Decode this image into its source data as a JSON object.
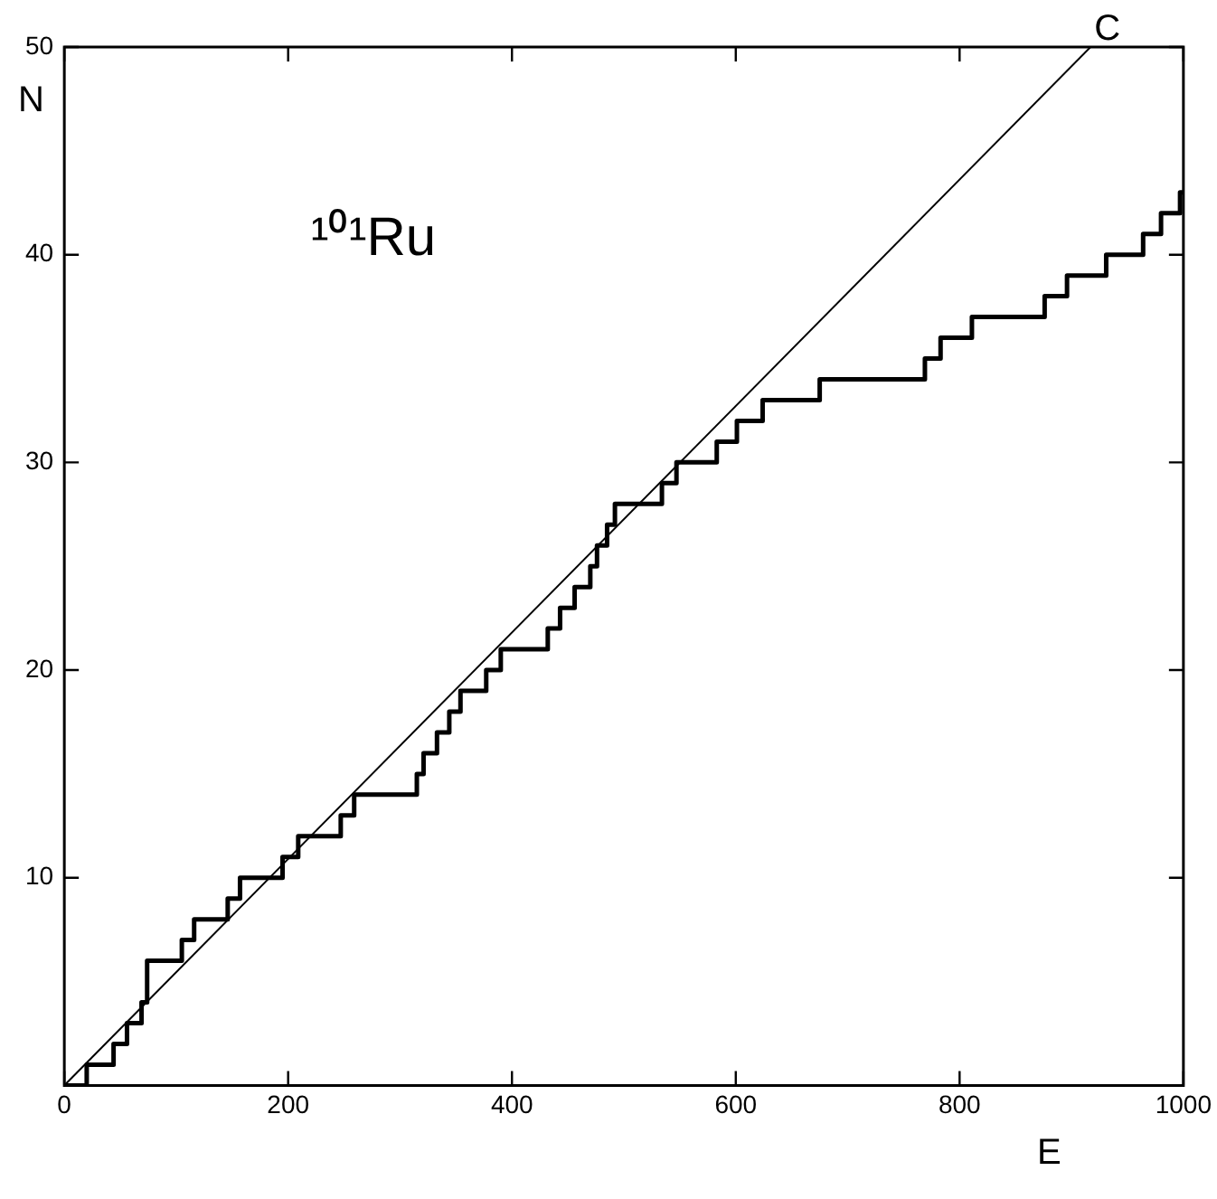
{
  "chart_data": {
    "type": "step",
    "xlabel": "E",
    "ylabel": "N",
    "annotations": [
      "¹⁰¹Ru",
      {
        "text": "C",
        "x": 917,
        "y": 50
      }
    ],
    "xlim": [
      0,
      1000
    ],
    "xticks": [
      0,
      200,
      400,
      600,
      800,
      1000
    ],
    "ylim": [
      0,
      50
    ],
    "yticks": [
      10,
      20,
      30,
      40,
      50
    ],
    "grid": false,
    "legend": false,
    "marker": "none",
    "series": [
      {
        "color": "#000000",
        "x": [
          0,
          20,
          44,
          56,
          69,
          74,
          105,
          116,
          146,
          157,
          195,
          209,
          247,
          259,
          315,
          321,
          333,
          344,
          354,
          377,
          390,
          432,
          443,
          456,
          470,
          476,
          485,
          492,
          534,
          547,
          583,
          601,
          624,
          675,
          769,
          783,
          811,
          876,
          896,
          931,
          964,
          980,
          997,
          1000
        ],
        "values": [
          0,
          1,
          2,
          3,
          4,
          6,
          7,
          8,
          9,
          10,
          11,
          12,
          13,
          14,
          15,
          16,
          17,
          18,
          19,
          20,
          21,
          22,
          23,
          24,
          25,
          26,
          27,
          28,
          29,
          30,
          31,
          32,
          33,
          34,
          35,
          36,
          37,
          38,
          39,
          40,
          41,
          42,
          43,
          43
        ]
      },
      {
        "type": "line",
        "color": "#000000",
        "x": [
          0,
          917
        ],
        "values": [
          0,
          50
        ]
      }
    ]
  }
}
